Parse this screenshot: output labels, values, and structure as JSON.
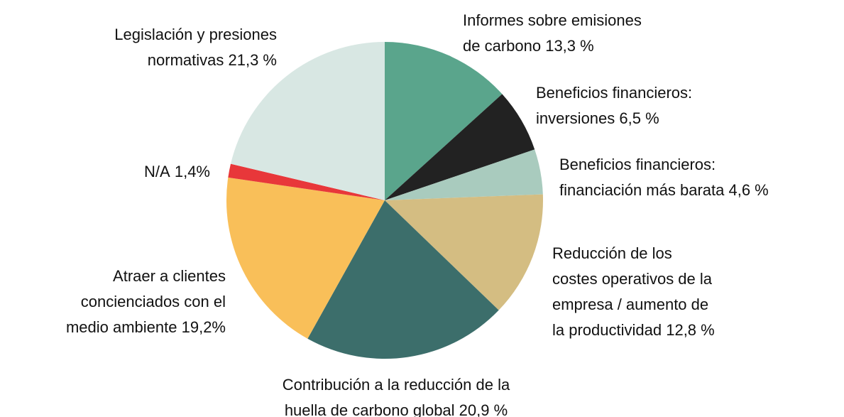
{
  "chart_data": {
    "type": "pie",
    "categories": [
      "Informes sobre emisiones\nde carbono",
      "Beneficios financieros:\ninversiones",
      "Beneficios financieros:\nfinanciación más barata",
      "Reducción de los\ncostes operativos de la\nempresa / aumento de\nla productividad",
      "Contribución a la reducción de la\nhuella de carbono global",
      "Atraer a clientes\nconcienciados con el\nmedio ambiente",
      "N/A",
      "Legislación y presiones\nnormativas"
    ],
    "values": [
      13.3,
      6.5,
      4.6,
      12.8,
      20.9,
      19.2,
      1.4,
      21.3
    ],
    "value_labels": [
      "13,3 %",
      "6,5 %",
      "4,6 %",
      "12,8 %",
      "20,9 %",
      "19,2%",
      "1,4%",
      "21,3 %"
    ],
    "colors": [
      "#5aa58c",
      "#222222",
      "#a9cbbe",
      "#d4bd82",
      "#3c6e6b",
      "#f9bf59",
      "#e8373a",
      "#d8e7e3"
    ]
  }
}
